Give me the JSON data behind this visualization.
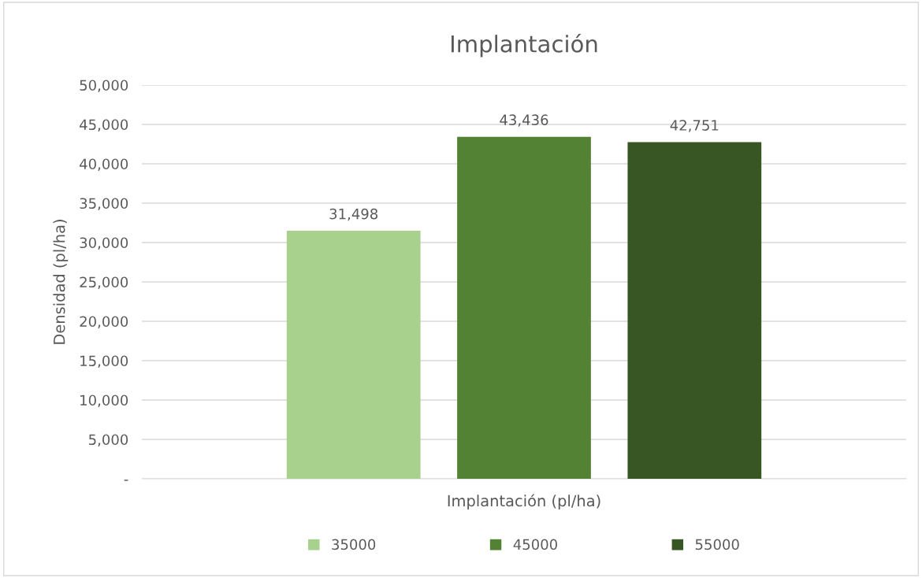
{
  "chart_data": {
    "type": "bar",
    "title": "Implantación",
    "xlabel": "Implantación (pl/ha)",
    "ylabel": "Densidad (pl/ha)",
    "categories": [
      null
    ],
    "series": [
      {
        "name": "35000",
        "color": "#a9d18e",
        "values": [
          31498
        ],
        "value_labels": [
          "31,498"
        ]
      },
      {
        "name": "45000",
        "color": "#548235",
        "values": [
          43436
        ],
        "value_labels": [
          "43,436"
        ]
      },
      {
        "name": "55000",
        "color": "#375623",
        "values": [
          42751
        ],
        "value_labels": [
          "42,751"
        ]
      }
    ],
    "ylim": [
      0,
      50000
    ],
    "yticks": [
      {
        "value": 0,
        "label": "-"
      },
      {
        "value": 5000,
        "label": "5,000"
      },
      {
        "value": 10000,
        "label": "10,000"
      },
      {
        "value": 15000,
        "label": "15,000"
      },
      {
        "value": 20000,
        "label": "20,000"
      },
      {
        "value": 25000,
        "label": "25,000"
      },
      {
        "value": 30000,
        "label": "30,000"
      },
      {
        "value": 35000,
        "label": "35,000"
      },
      {
        "value": 40000,
        "label": "40,000"
      },
      {
        "value": 45000,
        "label": "45,000"
      },
      {
        "value": 50000,
        "label": "50,000"
      }
    ],
    "grid": "y",
    "legend": "bottom"
  }
}
